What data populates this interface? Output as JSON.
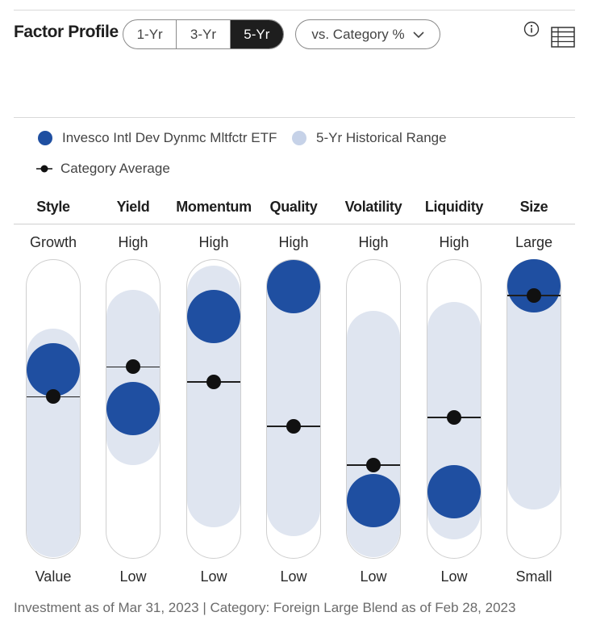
{
  "header": {
    "title": "Factor Profile",
    "periods": [
      "1-Yr",
      "3-Yr",
      "5-Yr"
    ],
    "active_period": "5-Yr",
    "compare_select": "vs. Category %"
  },
  "legend": {
    "fund": "Invesco Intl Dev Dynmc Mltfctr ETF",
    "range": "5-Yr Historical Range",
    "average": "Category Average"
  },
  "colors": {
    "fund": "#1f4fa1",
    "range": "#dfe5f0",
    "average": "#111111",
    "active_tab": "#1e1e1e"
  },
  "factors": [
    {
      "name": "Style",
      "top": "Growth",
      "bottom": "Value",
      "fund": 63,
      "avg": 54,
      "range_low": 0,
      "range_high": 77
    },
    {
      "name": "Yield",
      "top": "High",
      "bottom": "Low",
      "fund": 50,
      "avg": 64,
      "range_low": 31,
      "range_high": 90
    },
    {
      "name": "Momentum",
      "top": "High",
      "bottom": "Low",
      "fund": 81,
      "avg": 59,
      "range_low": 10,
      "range_high": 98
    },
    {
      "name": "Quality",
      "top": "High",
      "bottom": "Low",
      "fund": 91,
      "avg": 44,
      "range_low": 7,
      "range_high": 100
    },
    {
      "name": "Volatility",
      "top": "High",
      "bottom": "Low",
      "fund": 19,
      "avg": 31,
      "range_low": 0,
      "range_high": 83
    },
    {
      "name": "Liquidity",
      "top": "High",
      "bottom": "Low",
      "fund": 22,
      "avg": 47,
      "range_low": 6,
      "range_high": 86
    },
    {
      "name": "Size",
      "top": "Large",
      "bottom": "Small",
      "fund": 95,
      "avg": 88,
      "range_low": 16,
      "range_high": 100
    }
  ],
  "footer": "Investment as of Mar 31, 2023 | Category: Foreign Large Blend as of Feb 28, 2023"
}
